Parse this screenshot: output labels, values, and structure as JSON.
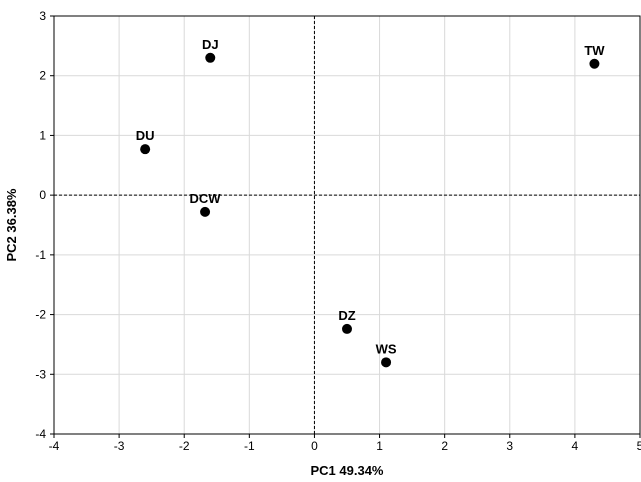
{
  "chart_data": {
    "type": "scatter",
    "title": "",
    "xlabel": "PC1 49.34%",
    "ylabel": "PC2 36.38%",
    "xlim": [
      -4,
      5
    ],
    "ylim": [
      -4,
      3
    ],
    "xticks": [
      -4,
      -3,
      -2,
      -1,
      0,
      1,
      2,
      3,
      4,
      5
    ],
    "yticks": [
      -4,
      -3,
      -2,
      -1,
      0,
      1,
      2,
      3
    ],
    "grid": true,
    "reference_lines": {
      "x": 0,
      "y": 0,
      "style": "dashed"
    },
    "points": [
      {
        "label": "DJ",
        "x": -1.6,
        "y": 2.3
      },
      {
        "label": "TW",
        "x": 4.3,
        "y": 2.2
      },
      {
        "label": "DU",
        "x": -2.6,
        "y": 0.77
      },
      {
        "label": "DCW",
        "x": -1.68,
        "y": -0.28
      },
      {
        "label": "DZ",
        "x": 0.5,
        "y": -2.24
      },
      {
        "label": "WS",
        "x": 1.1,
        "y": -2.8
      }
    ],
    "marker_color": "#000000",
    "grid_color": "#d9d9d9"
  }
}
